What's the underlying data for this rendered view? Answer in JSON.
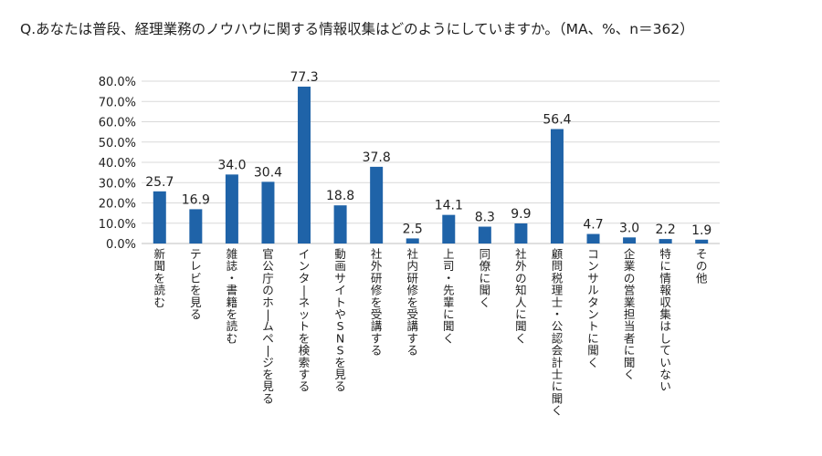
{
  "chart_data": {
    "type": "bar",
    "title": "Q.あなたは普段、経理業務のノウハウに関する情報収集はどのようにしていますか。（MA、%、n＝362）",
    "categories": [
      "新聞を読む",
      "テレビを見る",
      "雑誌・書籍を読む",
      "官公庁のホームページを見る",
      "インターネットを検索する",
      "動画サイトやSNSを見る",
      "社外研修を受講する",
      "社内研修を受講する",
      "上司・先輩に聞く",
      "同僚に聞く",
      "社外の知人に聞く",
      "顧問税理士・公認会計士に聞く",
      "コンサルタントに聞く",
      "企業の営業担当者に聞く",
      "特に情報収集はしていない",
      "その他"
    ],
    "values": [
      25.7,
      16.9,
      34.0,
      30.4,
      77.3,
      18.8,
      37.8,
      2.5,
      14.1,
      8.3,
      9.9,
      56.4,
      4.7,
      3.0,
      2.2,
      1.9
    ],
    "value_labels": [
      "25.7",
      "16.9",
      "34.0",
      "30.4",
      "77.3",
      "18.8",
      "37.8",
      "2.5",
      "14.1",
      "8.3",
      "9.9",
      "56.4",
      "4.7",
      "3.0",
      "2.2",
      "1.9"
    ],
    "yticks": [
      "0.0%",
      "10.0%",
      "20.0%",
      "30.0%",
      "40.0%",
      "50.0%",
      "60.0%",
      "70.0%",
      "80.0%"
    ],
    "ylim": [
      0,
      80
    ],
    "xlabel": "",
    "ylabel": "",
    "grid": true,
    "bar_color": "#1f63a8",
    "grid_color": "#d9d9d9"
  }
}
